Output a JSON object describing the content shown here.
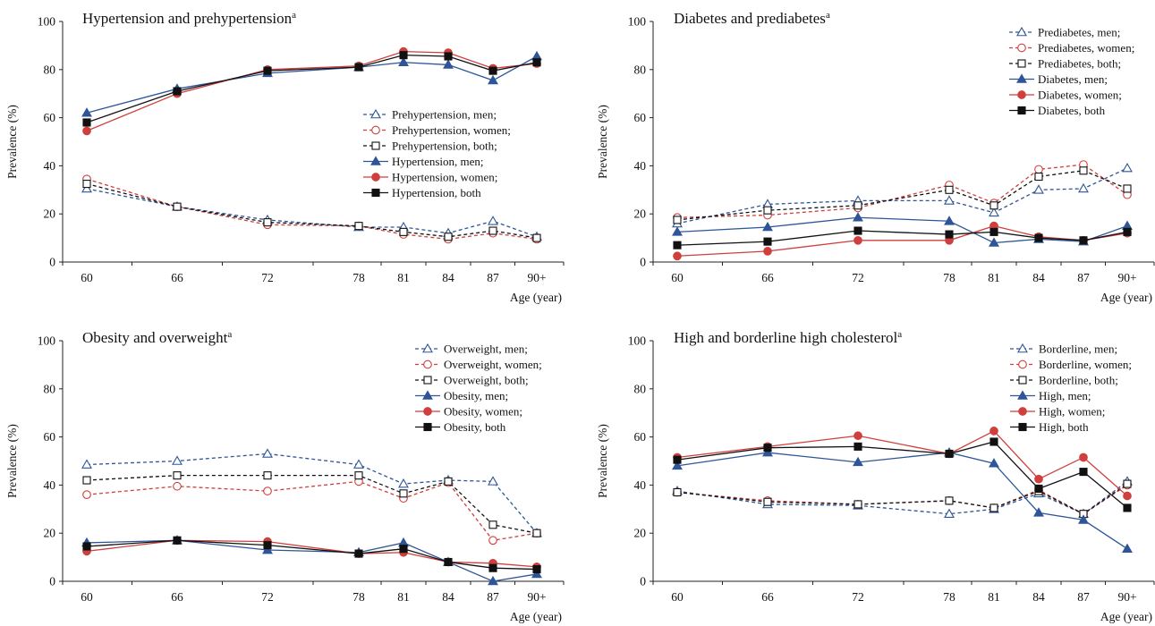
{
  "colors": {
    "men": "#2e5597",
    "women": "#cf3f3d",
    "both": "#111111"
  },
  "chart_data": [
    {
      "type": "line",
      "title": "Hypertension and prehypertension",
      "title_superscript": "a",
      "xlabel": "Age (year)",
      "ylabel": "Prevalence (%)",
      "categories": [
        "60",
        "66",
        "72",
        "78",
        "81",
        "84",
        "87",
        "90+"
      ],
      "ylim": [
        0,
        100
      ],
      "yticks": [
        "0",
        "20",
        "40",
        "60",
        "80",
        "100"
      ],
      "legend_position": "center-right",
      "series": [
        {
          "name": "Prehypertension, men;",
          "group": "men",
          "style": "dashed",
          "marker": "triangle-open",
          "values": [
            30.5,
            23,
            17.5,
            14.5,
            14.5,
            12,
            17,
            10.5
          ]
        },
        {
          "name": "Prehypertension, women;",
          "group": "women",
          "style": "dashed",
          "marker": "circle-open",
          "values": [
            34.5,
            23,
            15.5,
            15,
            11.5,
            9.5,
            12,
            9.5
          ]
        },
        {
          "name": "Prehypertension, both;",
          "group": "both",
          "style": "dashed",
          "marker": "square-open",
          "values": [
            32.5,
            23,
            16.5,
            15,
            12.5,
            10.5,
            13,
            10
          ]
        },
        {
          "name": "Hypertension, men;",
          "group": "men",
          "style": "solid",
          "marker": "triangle-filled",
          "values": [
            62,
            72,
            78.5,
            81,
            83,
            82,
            75.5,
            85.5
          ]
        },
        {
          "name": "Hypertension, women;",
          "group": "women",
          "style": "solid",
          "marker": "circle-filled",
          "values": [
            54.5,
            70,
            80,
            81.5,
            87.5,
            87,
            80.5,
            82.5
          ]
        },
        {
          "name": "Hypertension, both",
          "group": "both",
          "style": "solid",
          "marker": "square-filled",
          "values": [
            58,
            71,
            79.5,
            81,
            86,
            85.5,
            79.5,
            83
          ]
        }
      ]
    },
    {
      "type": "line",
      "title": "Diabetes and prediabetes",
      "title_superscript": "a",
      "xlabel": "Age (year)",
      "ylabel": "Prevalence (%)",
      "categories": [
        "60",
        "66",
        "72",
        "78",
        "81",
        "84",
        "87",
        "90+"
      ],
      "ylim": [
        0,
        100
      ],
      "yticks": [
        "0",
        "20",
        "40",
        "60",
        "80",
        "100"
      ],
      "legend_position": "top-right",
      "series": [
        {
          "name": "Prediabetes, men;",
          "group": "men",
          "style": "dashed",
          "marker": "triangle-open",
          "values": [
            16,
            24,
            25.5,
            25.5,
            20.5,
            30,
            30.5,
            39
          ]
        },
        {
          "name": "Prediabetes, women;",
          "group": "women",
          "style": "dashed",
          "marker": "circle-open",
          "values": [
            18.5,
            19.5,
            22.5,
            32,
            24.5,
            38.5,
            40.5,
            28
          ]
        },
        {
          "name": "Prediabetes, both;",
          "group": "both",
          "style": "dashed",
          "marker": "square-open",
          "values": [
            17.5,
            21.5,
            23.5,
            30,
            23.5,
            35.5,
            38,
            30.5
          ]
        },
        {
          "name": "Diabetes, men;",
          "group": "men",
          "style": "solid",
          "marker": "triangle-filled",
          "values": [
            12.5,
            14.5,
            18.5,
            17,
            8,
            9.5,
            8.5,
            15
          ]
        },
        {
          "name": "Diabetes, women;",
          "group": "women",
          "style": "solid",
          "marker": "circle-filled",
          "values": [
            2.5,
            4.5,
            9,
            9,
            15,
            10.5,
            9,
            12
          ]
        },
        {
          "name": "Diabetes, both",
          "group": "both",
          "style": "solid",
          "marker": "square-filled",
          "values": [
            7,
            8.5,
            13,
            11.5,
            12.5,
            10,
            9,
            12.5
          ]
        }
      ]
    },
    {
      "type": "line",
      "title": "Obesity and overweight",
      "title_superscript": "a",
      "xlabel": "Age (year)",
      "ylabel": "Prevalence (%)",
      "categories": [
        "60",
        "66",
        "72",
        "78",
        "81",
        "84",
        "87",
        "90+"
      ],
      "ylim": [
        0,
        100
      ],
      "yticks": [
        "0",
        "20",
        "40",
        "60",
        "80",
        "100"
      ],
      "legend_position": "top-right",
      "series": [
        {
          "name": "Overweight, men;",
          "group": "men",
          "style": "dashed",
          "marker": "triangle-open",
          "values": [
            48.5,
            50,
            53,
            48.5,
            40.5,
            42,
            41.5,
            20
          ]
        },
        {
          "name": "Overweight, women;",
          "group": "women",
          "style": "dashed",
          "marker": "circle-open",
          "values": [
            36,
            39.5,
            37.5,
            41.5,
            34.5,
            41,
            17,
            20
          ]
        },
        {
          "name": "Overweight, both;",
          "group": "both",
          "style": "dashed",
          "marker": "square-open",
          "values": [
            42,
            44,
            44,
            44,
            36.5,
            41.5,
            23.5,
            20
          ]
        },
        {
          "name": "Obesity, men;",
          "group": "men",
          "style": "solid",
          "marker": "triangle-filled",
          "values": [
            16,
            17,
            13,
            12,
            16,
            8,
            0,
            3
          ]
        },
        {
          "name": "Obesity, women;",
          "group": "women",
          "style": "solid",
          "marker": "circle-filled",
          "values": [
            12.5,
            17,
            16.5,
            11.5,
            12,
            8,
            7.5,
            6
          ]
        },
        {
          "name": "Obesity, both",
          "group": "both",
          "style": "solid",
          "marker": "square-filled",
          "values": [
            14.5,
            17,
            15,
            11.5,
            13.5,
            8,
            5.5,
            5
          ]
        }
      ]
    },
    {
      "type": "line",
      "title": "High and borderline high cholesterol",
      "title_superscript": "a",
      "xlabel": "Age (year)",
      "ylabel": "Prevalence (%)",
      "categories": [
        "60",
        "66",
        "72",
        "78",
        "81",
        "84",
        "87",
        "90+"
      ],
      "ylim": [
        0,
        100
      ],
      "yticks": [
        "0",
        "20",
        "40",
        "60",
        "80",
        "100"
      ],
      "legend_position": "top-right",
      "series": [
        {
          "name": "Borderline, men;",
          "group": "men",
          "style": "dashed",
          "marker": "triangle-open",
          "values": [
            37.5,
            32,
            31.5,
            28,
            30,
            36.5,
            28,
            41.5
          ]
        },
        {
          "name": "Borderline, women;",
          "group": "women",
          "style": "dashed",
          "marker": "circle-open",
          "values": [
            37,
            33.5,
            32,
            33.5,
            30.5,
            38,
            28,
            40
          ]
        },
        {
          "name": "Borderline, both;",
          "group": "both",
          "style": "dashed",
          "marker": "square-open",
          "values": [
            37,
            33,
            32,
            33.5,
            30.5,
            37.5,
            28,
            40.5
          ]
        },
        {
          "name": "High, men;",
          "group": "men",
          "style": "solid",
          "marker": "triangle-filled",
          "values": [
            48,
            53.5,
            49.5,
            53.5,
            49,
            28.5,
            25.5,
            13.5
          ]
        },
        {
          "name": "High, women;",
          "group": "women",
          "style": "solid",
          "marker": "circle-filled",
          "values": [
            51.5,
            56,
            60.5,
            53,
            62.5,
            42.5,
            51.5,
            35.5
          ]
        },
        {
          "name": "High, both",
          "group": "both",
          "style": "solid",
          "marker": "square-filled",
          "values": [
            50.5,
            55.5,
            56,
            53,
            58,
            38.5,
            45.5,
            30.5
          ]
        }
      ]
    }
  ]
}
